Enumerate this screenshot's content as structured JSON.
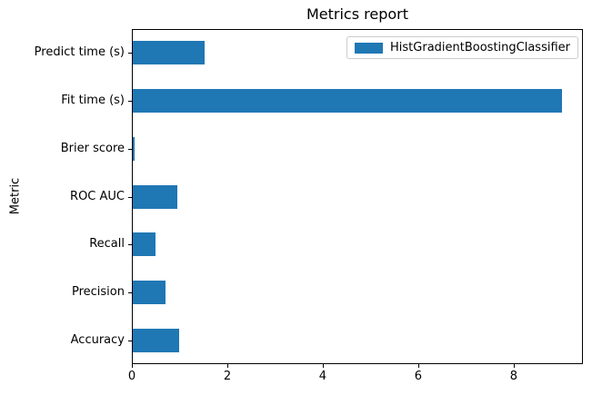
{
  "chart_data": {
    "type": "bar",
    "orientation": "horizontal",
    "title": "Metrics report",
    "xlabel": "",
    "ylabel": "Metric",
    "categories_top_to_bottom": [
      "Predict time (s)",
      "Fit time (s)",
      "Brier score",
      "ROC AUC",
      "Recall",
      "Precision",
      "Accuracy"
    ],
    "series": [
      {
        "name": "HistGradientBoostingClassifier",
        "color": "#1f77b4",
        "values_top_to_bottom": [
          1.5,
          9.0,
          0.04,
          0.94,
          0.47,
          0.69,
          0.97
        ]
      }
    ],
    "xlim": [
      0,
      9.45
    ],
    "x_ticks": [
      0,
      2,
      4,
      6,
      8
    ],
    "legend_position": "upper right",
    "grid": false,
    "background_color": "#ffffff",
    "spine_color": "#000000"
  }
}
